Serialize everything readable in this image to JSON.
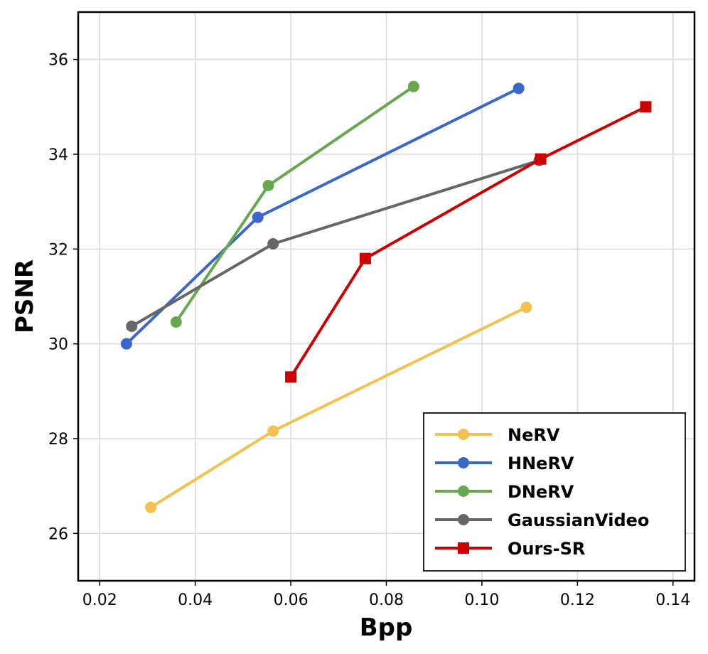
{
  "chart_data": {
    "type": "line",
    "title": "",
    "xlabel": "Bpp",
    "ylabel": "PSNR",
    "xlim": [
      0.0155,
      0.1445
    ],
    "ylim": [
      25.0,
      37.0
    ],
    "xticks": [
      0.02,
      0.04,
      0.06,
      0.08,
      0.1,
      0.12,
      0.14
    ],
    "xtick_labels": [
      "0.02",
      "0.04",
      "0.06",
      "0.08",
      "0.10",
      "0.12",
      "0.14"
    ],
    "yticks": [
      26,
      28,
      30,
      32,
      34,
      36
    ],
    "ytick_labels": [
      "26",
      "28",
      "30",
      "32",
      "34",
      "36"
    ],
    "grid": true,
    "legend_position": "bottom-right",
    "series": [
      {
        "name": "NeRV",
        "color": "#f2c14e",
        "marker": "circle",
        "points": [
          [
            0.0307,
            26.55
          ],
          [
            0.0563,
            28.16
          ],
          [
            0.1093,
            30.77
          ]
        ]
      },
      {
        "name": "HNeRV",
        "color": "#3a67c9",
        "marker": "circle",
        "points": [
          [
            0.0256,
            30.0
          ],
          [
            0.0531,
            32.67
          ],
          [
            0.1077,
            35.39
          ]
        ]
      },
      {
        "name": "DNeRV",
        "color": "#67a84f",
        "marker": "circle",
        "points": [
          [
            0.036,
            30.46
          ],
          [
            0.0553,
            33.34
          ],
          [
            0.0857,
            35.43
          ]
        ]
      },
      {
        "name": "GaussianVideo",
        "color": "#666666",
        "marker": "circle",
        "points": [
          [
            0.0267,
            30.37
          ],
          [
            0.0563,
            32.11
          ],
          [
            0.112,
            33.87
          ]
        ]
      },
      {
        "name": "Ours-SR",
        "color": "#cc0000",
        "marker": "square",
        "points": [
          [
            0.06,
            29.3
          ],
          [
            0.0756,
            31.8
          ],
          [
            0.1123,
            33.9
          ],
          [
            0.1343,
            35.0
          ]
        ]
      }
    ]
  }
}
